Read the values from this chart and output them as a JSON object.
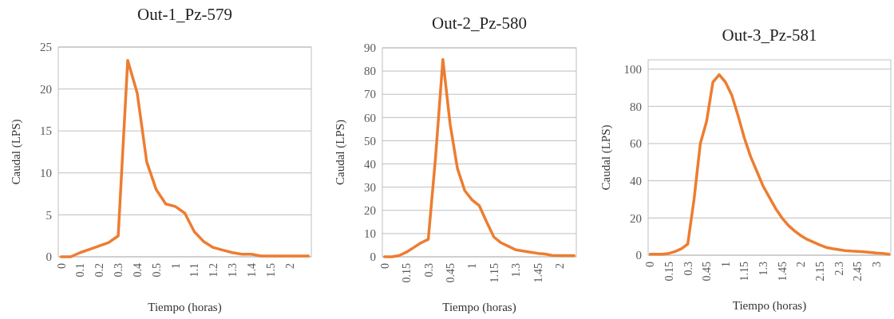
{
  "chart_data": [
    {
      "type": "line",
      "title": "Out-1_Pz-579",
      "xlabel": "Tiempo (horas)",
      "ylabel": "Caudal (LPS)",
      "categories": [
        "0",
        null,
        "0.1",
        null,
        "0.2",
        null,
        "0.3",
        null,
        "0.4",
        null,
        "0.5",
        null,
        "1",
        null,
        "1.1",
        null,
        "1.2",
        null,
        "1.3",
        null,
        "1.4",
        null,
        "1.5",
        null,
        "2",
        null,
        null
      ],
      "series": [
        {
          "color": "#ed7d31",
          "values": [
            0,
            0,
            0.5,
            0.9,
            1.3,
            1.7,
            2.5,
            23.4,
            19.5,
            11.3,
            8,
            6.3,
            6,
            5.2,
            3,
            1.8,
            1.1,
            0.8,
            0.5,
            0.3,
            0.3,
            0.1,
            0.1,
            0.1,
            0.1,
            0.1,
            0.1
          ]
        }
      ],
      "ylim": [
        0,
        25
      ],
      "yticks": [
        0,
        5,
        10,
        15,
        20,
        25
      ],
      "grid": "y"
    },
    {
      "type": "line",
      "title": "Out-2_Pz-580",
      "xlabel": "Tiempo (horas)",
      "ylabel": "Caudal (LPS)",
      "categories": [
        "0",
        null,
        null,
        "0.15",
        null,
        null,
        "0.3",
        null,
        null,
        "0.45",
        null,
        null,
        "1",
        null,
        null,
        "1.15",
        null,
        null,
        "1.3",
        null,
        null,
        "1.45",
        null,
        null,
        "2",
        null,
        null
      ],
      "series": [
        {
          "color": "#ed7d31",
          "values": [
            0,
            0,
            0.5,
            2,
            4,
            6,
            7.5,
            43,
            85,
            57,
            38,
            28.5,
            24.5,
            22,
            15,
            8.5,
            6,
            4.5,
            3,
            2.5,
            2,
            1.5,
            1.2,
            0.6,
            0.5,
            0.5,
            0.5
          ]
        }
      ],
      "ylim": [
        0,
        90
      ],
      "yticks": [
        0,
        10,
        20,
        30,
        40,
        50,
        60,
        70,
        80,
        90
      ],
      "grid": "y"
    },
    {
      "type": "line",
      "title": "Out-3_Pz-581",
      "xlabel": "Tiempo (horas)",
      "ylabel": "Caudal (LPS)",
      "categories": [
        "0",
        null,
        null,
        "0.15",
        null,
        null,
        "0.3",
        null,
        null,
        "0.45",
        null,
        null,
        "1",
        null,
        null,
        "1.15",
        null,
        null,
        "1.3",
        null,
        null,
        "1.45",
        null,
        null,
        "2",
        null,
        null,
        "2.15",
        null,
        null,
        "2.3",
        null,
        null,
        "2.45",
        null,
        null,
        "3",
        null,
        null
      ],
      "series": [
        {
          "color": "#ed7d31",
          "values": [
            0.5,
            0.5,
            0.5,
            1,
            2,
            3.5,
            6,
            30,
            60,
            72,
            93,
            97,
            93,
            86,
            75,
            63,
            53,
            45,
            37,
            31,
            25,
            20,
            16,
            13,
            10.5,
            8.5,
            7,
            5.5,
            4.2,
            3.5,
            3,
            2.5,
            2.2,
            2,
            1.8,
            1.5,
            1.2,
            1,
            0.5
          ]
        }
      ],
      "ylim": [
        0,
        105
      ],
      "yticks": [
        0,
        20,
        40,
        60,
        80,
        100
      ],
      "grid": "y"
    }
  ]
}
